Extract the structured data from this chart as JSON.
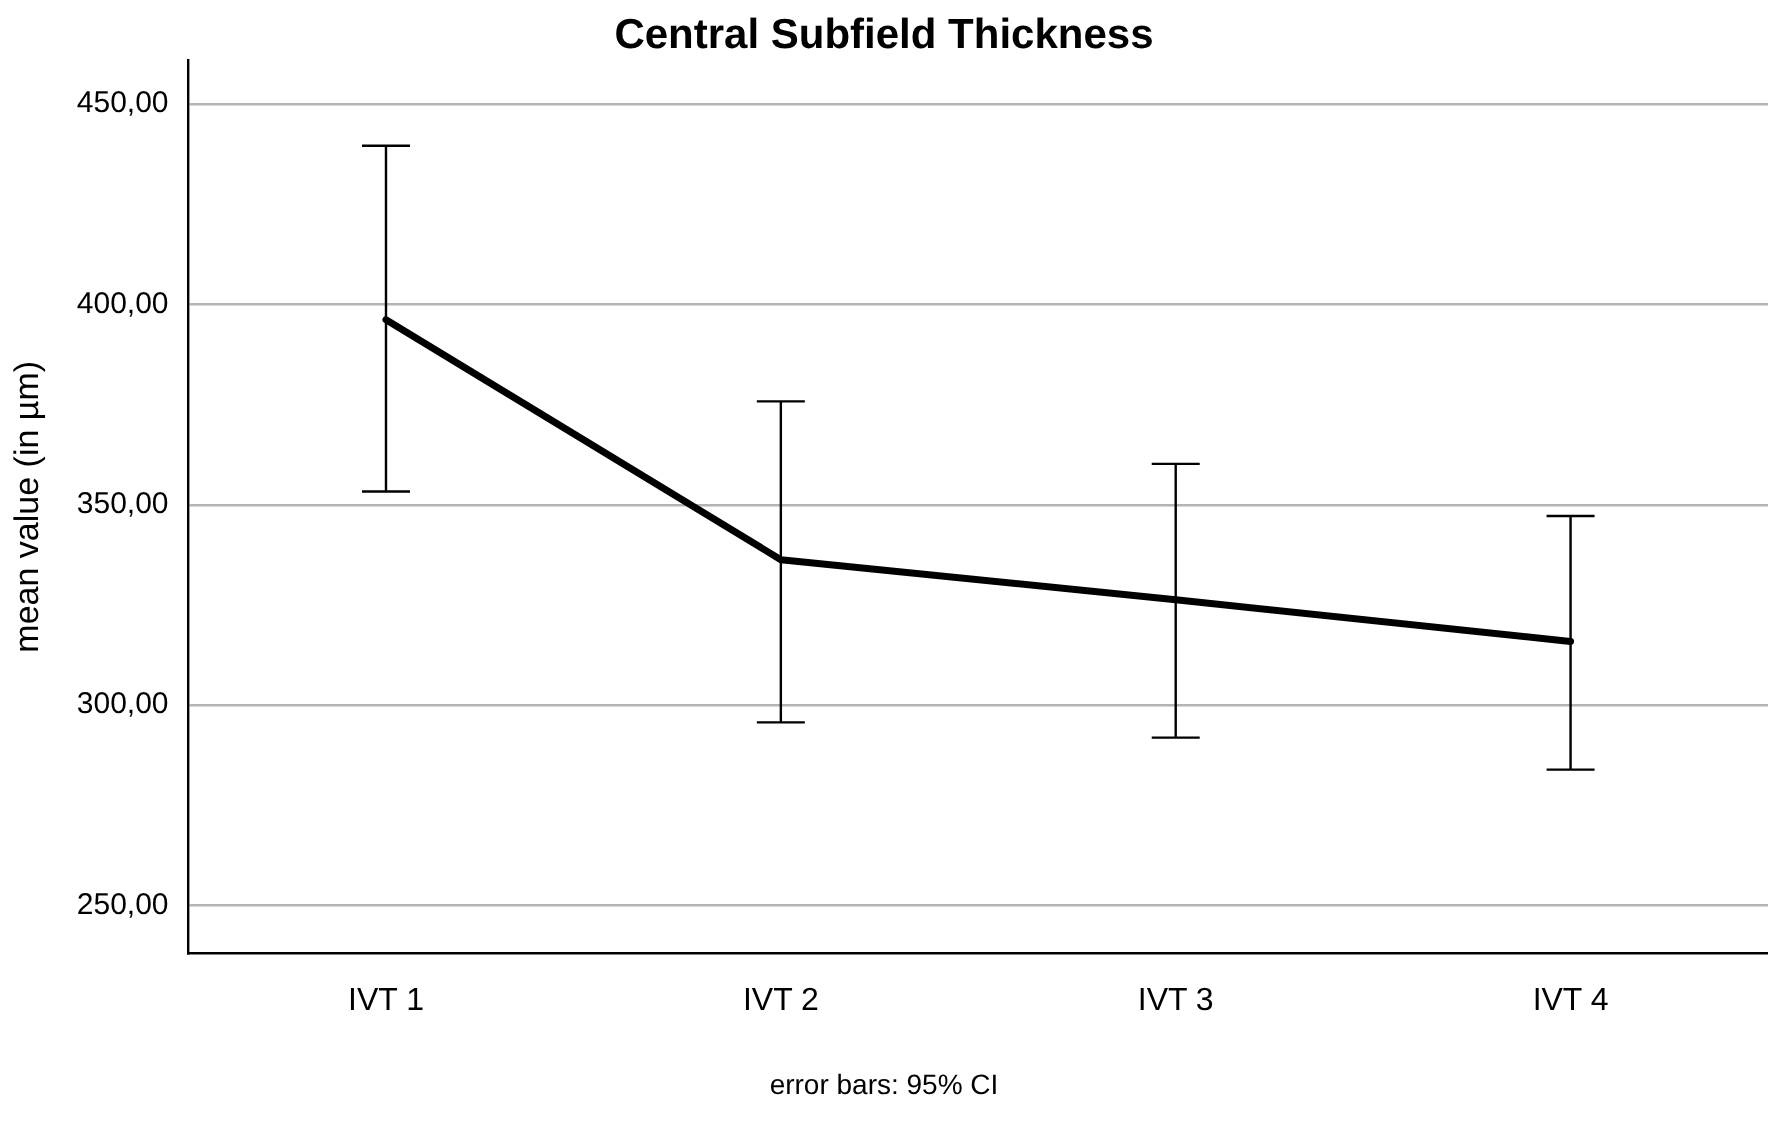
{
  "chart_data": {
    "type": "line",
    "title": "Central Subfield Thickness",
    "ylabel": "mean value (in µm)",
    "categories": [
      "IVT 1",
      "IVT 2",
      "IVT 3",
      "IVT 4"
    ],
    "series": [
      {
        "color": "#000000",
        "values": [
          396.2,
          336.3,
          326.3,
          315.9
        ],
        "errors": [
          [
            353.3,
            439.6
          ],
          [
            295.7,
            375.8
          ],
          [
            291.9,
            360.2
          ],
          [
            283.9,
            347.2
          ]
        ]
      }
    ],
    "ylim": [
      238,
      461
    ],
    "yticks": [
      {
        "value": 250,
        "label": "250,00"
      },
      {
        "value": 300,
        "label": "300,00"
      },
      {
        "value": 350,
        "label": "350,00"
      },
      {
        "value": 400,
        "label": "400,00"
      },
      {
        "value": 450,
        "label": "450,00"
      }
    ],
    "grid": "y",
    "legend": false,
    "marker": "none",
    "annotations": [
      "error bars: 95% CI"
    ]
  }
}
